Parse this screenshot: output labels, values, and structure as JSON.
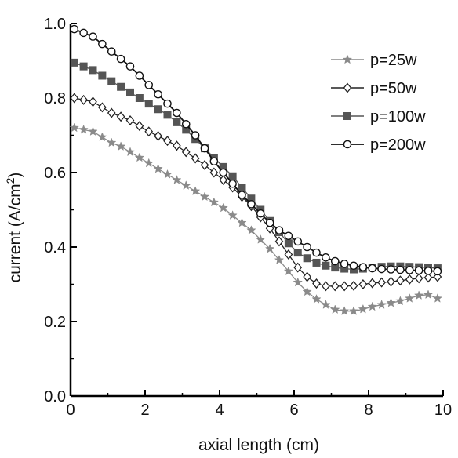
{
  "chart_data": {
    "type": "line",
    "xlabel": "axial length (cm)",
    "ylabel": "current (A/cm",
    "ylabel_superscript": "2",
    "ylabel_suffix": ")",
    "xlim": [
      0,
      10
    ],
    "ylim": [
      0,
      1.0
    ],
    "xticks": [
      "0",
      "2",
      "4",
      "6",
      "8",
      "10"
    ],
    "yticks": [
      "0.0",
      "0.2",
      "0.4",
      "0.6",
      "0.8",
      "1.0"
    ],
    "grid": false,
    "legend_position": "top-right",
    "x": [
      0.1,
      0.35,
      0.6,
      0.85,
      1.1,
      1.35,
      1.6,
      1.85,
      2.1,
      2.35,
      2.6,
      2.85,
      3.1,
      3.35,
      3.6,
      3.85,
      4.1,
      4.35,
      4.6,
      4.85,
      5.1,
      5.35,
      5.6,
      5.85,
      6.1,
      6.35,
      6.6,
      6.85,
      7.1,
      7.35,
      7.6,
      7.85,
      8.1,
      8.35,
      8.6,
      8.85,
      9.1,
      9.35,
      9.6,
      9.85
    ],
    "series": [
      {
        "name": "p=25w",
        "marker": "star",
        "color": "#8a8a8a",
        "values": [
          0.72,
          0.715,
          0.71,
          0.695,
          0.68,
          0.67,
          0.655,
          0.64,
          0.625,
          0.61,
          0.595,
          0.58,
          0.565,
          0.55,
          0.535,
          0.52,
          0.505,
          0.485,
          0.465,
          0.445,
          0.42,
          0.395,
          0.365,
          0.335,
          0.305,
          0.28,
          0.26,
          0.245,
          0.232,
          0.228,
          0.228,
          0.233,
          0.24,
          0.245,
          0.25,
          0.255,
          0.262,
          0.27,
          0.272,
          0.262
        ]
      },
      {
        "name": "p=50w",
        "marker": "diamond",
        "color": "#222222",
        "values": [
          0.8,
          0.795,
          0.79,
          0.775,
          0.76,
          0.75,
          0.74,
          0.725,
          0.71,
          0.698,
          0.685,
          0.672,
          0.655,
          0.638,
          0.62,
          0.6,
          0.58,
          0.56,
          0.535,
          0.51,
          0.48,
          0.45,
          0.415,
          0.38,
          0.345,
          0.32,
          0.302,
          0.295,
          0.295,
          0.295,
          0.296,
          0.3,
          0.303,
          0.305,
          0.307,
          0.31,
          0.313,
          0.316,
          0.318,
          0.32
        ]
      },
      {
        "name": "p=100w",
        "marker": "square",
        "color": "#555555",
        "values": [
          0.895,
          0.885,
          0.875,
          0.86,
          0.845,
          0.83,
          0.815,
          0.8,
          0.785,
          0.77,
          0.755,
          0.735,
          0.715,
          0.69,
          0.665,
          0.64,
          0.615,
          0.59,
          0.56,
          0.53,
          0.5,
          0.47,
          0.44,
          0.41,
          0.385,
          0.37,
          0.358,
          0.35,
          0.345,
          0.342,
          0.34,
          0.342,
          0.345,
          0.347,
          0.348,
          0.348,
          0.347,
          0.346,
          0.345,
          0.343
        ]
      },
      {
        "name": "p=200w",
        "marker": "circle",
        "color": "#111111",
        "values": [
          0.985,
          0.975,
          0.965,
          0.945,
          0.925,
          0.905,
          0.885,
          0.86,
          0.835,
          0.81,
          0.785,
          0.76,
          0.73,
          0.7,
          0.665,
          0.63,
          0.6,
          0.57,
          0.54,
          0.515,
          0.49,
          0.465,
          0.445,
          0.43,
          0.415,
          0.4,
          0.385,
          0.372,
          0.362,
          0.355,
          0.35,
          0.346,
          0.343,
          0.341,
          0.34,
          0.339,
          0.338,
          0.337,
          0.336,
          0.335
        ]
      }
    ]
  }
}
